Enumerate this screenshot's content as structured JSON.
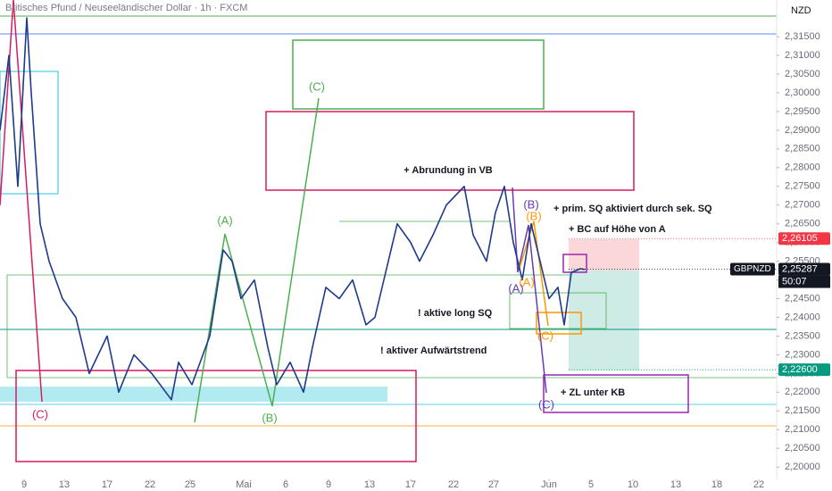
{
  "chart_data": {
    "type": "line",
    "title": "Britisches Pfund / Neuseeländischer Dollar · 1h · FXCM",
    "currency": "NZD",
    "series": [
      {
        "name": "GBPNZD",
        "color": "#1e3a8a",
        "x": [
          0,
          1,
          2,
          3,
          3.5,
          4.5,
          5.5,
          7,
          8.5,
          10,
          12,
          13.3,
          15,
          17,
          19.2,
          20,
          21.5,
          23.5,
          25,
          26,
          27,
          28.5,
          30,
          31,
          32.5,
          34,
          35,
          36.5,
          38,
          39.5,
          41,
          42,
          43.5,
          44.5,
          46,
          47,
          48.5,
          50,
          52,
          53,
          54.5,
          55.5,
          56.5,
          57.5,
          58.5,
          59.5,
          60.5,
          61.5,
          62.5,
          63.2,
          64,
          65,
          65.5
        ],
        "values": [
          2.29,
          2.31,
          2.275,
          2.32,
          2.3,
          2.265,
          2.255,
          2.245,
          2.24,
          2.225,
          2.235,
          2.22,
          2.23,
          2.225,
          2.218,
          2.228,
          2.222,
          2.235,
          2.258,
          2.255,
          2.245,
          2.25,
          2.232,
          2.222,
          2.228,
          2.22,
          2.232,
          2.248,
          2.245,
          2.25,
          2.238,
          2.24,
          2.255,
          2.265,
          2.26,
          2.255,
          2.262,
          2.27,
          2.275,
          2.262,
          2.255,
          2.268,
          2.275,
          2.26,
          2.25,
          2.265,
          2.255,
          2.245,
          2.248,
          2.238,
          2.252,
          2.253,
          2.2528
        ]
      }
    ],
    "xlim": [
      0,
      87
    ],
    "ylim": [
      2.1967,
      2.3248
    ],
    "xticks": [
      {
        "value": 2.7,
        "label": "9"
      },
      {
        "value": 7.2,
        "label": "13"
      },
      {
        "value": 12,
        "label": "17"
      },
      {
        "value": 16.8,
        "label": "22"
      },
      {
        "value": 21.3,
        "label": "25"
      },
      {
        "value": 27.3,
        "label": "Mai"
      },
      {
        "value": 32,
        "label": "6"
      },
      {
        "value": 36.8,
        "label": "9"
      },
      {
        "value": 41.4,
        "label": "13"
      },
      {
        "value": 46,
        "label": "17"
      },
      {
        "value": 50.8,
        "label": "22"
      },
      {
        "value": 55.3,
        "label": "27"
      },
      {
        "value": 61.5,
        "label": "Jun"
      },
      {
        "value": 66.2,
        "label": "5"
      },
      {
        "value": 70.9,
        "label": "10"
      },
      {
        "value": 75.7,
        "label": "13"
      },
      {
        "value": 80.3,
        "label": "18"
      },
      {
        "value": 85,
        "label": "22"
      }
    ],
    "yticks": [
      {
        "value": 2.2,
        "label": "2,20000"
      },
      {
        "value": 2.205,
        "label": "2,20500"
      },
      {
        "value": 2.21,
        "label": "2,21000"
      },
      {
        "value": 2.215,
        "label": "2,21500"
      },
      {
        "value": 2.22,
        "label": "2,22000"
      },
      {
        "value": 2.225,
        "label": "2,22500"
      },
      {
        "value": 2.23,
        "label": "2,23000"
      },
      {
        "value": 2.235,
        "label": "2,23500"
      },
      {
        "value": 2.24,
        "label": "2,24000"
      },
      {
        "value": 2.245,
        "label": "2,24500"
      },
      {
        "value": 2.25,
        "label": "2,25000"
      },
      {
        "value": 2.255,
        "label": "2,25500"
      },
      {
        "value": 2.26,
        "label": "2,26000"
      },
      {
        "value": 2.265,
        "label": "2,26500"
      },
      {
        "value": 2.27,
        "label": "2,27000"
      },
      {
        "value": 2.275,
        "label": "2,27500"
      },
      {
        "value": 2.28,
        "label": "2,28000"
      },
      {
        "value": 2.285,
        "label": "2,28500"
      },
      {
        "value": 2.29,
        "label": "2,29000"
      },
      {
        "value": 2.295,
        "label": "2,29500"
      },
      {
        "value": 2.3,
        "label": "2,30000"
      },
      {
        "value": 2.305,
        "label": "2,30500"
      },
      {
        "value": 2.31,
        "label": "2,31000"
      },
      {
        "value": 2.315,
        "label": "2,31500"
      }
    ],
    "price_tags": [
      {
        "value": 2.26105,
        "label": "2,26105",
        "color": "#f23645"
      },
      {
        "value": 2.25287,
        "label": "2,25287",
        "color": "#131722"
      },
      {
        "value": 2.226,
        "label": "2,22600",
        "color": "#089981"
      }
    ],
    "countdown": "50:07",
    "annotations": [
      "(C)",
      "+ Abrundung in VB",
      "(B)",
      "(B)",
      "+ prim. SQ aktiviert durch sek. SQ",
      "+ BC auf Höhe von A",
      "(A)",
      "(A)",
      "(A)",
      "! aktive long SQ",
      "(C)",
      "! aktiver Aufwärtstrend",
      "(C)",
      "(B)",
      "+ ZL unter KB",
      "(C)"
    ]
  }
}
